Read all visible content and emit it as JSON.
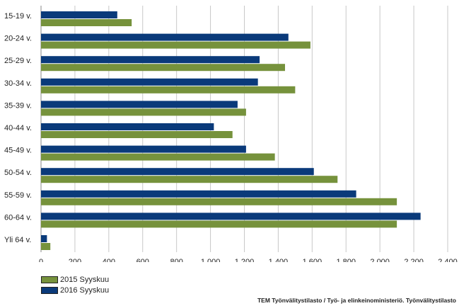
{
  "chart_data": {
    "type": "bar",
    "orientation": "horizontal",
    "categories": [
      "15-19 v.",
      "20-24 v.",
      "25-29 v.",
      "30-34 v.",
      "35-39 v.",
      "40-44 v.",
      "45-49 v.",
      "50-54 v.",
      "55-59 v.",
      "60-64 v.",
      "Yli 64 v."
    ],
    "series": [
      {
        "name": "2016 Syyskuu",
        "color": "#0a3a7a",
        "values": [
          450,
          1460,
          1290,
          1280,
          1160,
          1020,
          1210,
          1610,
          1860,
          2240,
          35
        ]
      },
      {
        "name": "2015 Syyskuu",
        "color": "#76923c",
        "values": [
          535,
          1590,
          1440,
          1500,
          1210,
          1130,
          1380,
          1750,
          2100,
          2100,
          55
        ]
      }
    ],
    "xlim": [
      0,
      2400
    ],
    "xticks": [
      0,
      200,
      400,
      600,
      800,
      1000,
      1200,
      1400,
      1600,
      1800,
      2000,
      2200,
      2400
    ],
    "xtick_labels": [
      "0",
      "200",
      "400",
      "600",
      "800",
      "1 000",
      "1 200",
      "1 400",
      "1 600",
      "1 800",
      "2 000",
      "2 200",
      "2 400"
    ],
    "grid": true,
    "legend_position": "bottom-left"
  },
  "legend": {
    "item_2015": "2015 Syyskuu",
    "item_2016": "2016 Syyskuu"
  },
  "source": "TEM Työnvälitystilasto / Työ- ja elinkeinoministeriö. Työnvälitystilasto"
}
